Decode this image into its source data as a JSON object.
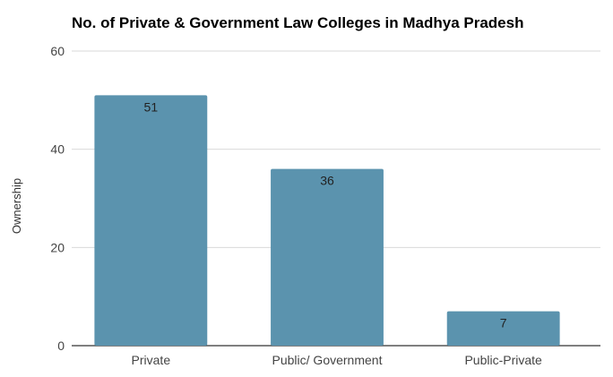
{
  "chart_data": {
    "type": "bar",
    "title": "No. of Private & Government Law Colleges in Madhya Pradesh",
    "xlabel": "",
    "ylabel": "Ownership",
    "categories": [
      "Private",
      "Public/ Government",
      "Public-Private"
    ],
    "values": [
      51,
      36,
      7
    ],
    "data_labels": [
      "51",
      "36",
      "7"
    ],
    "ylim": [
      0,
      60
    ],
    "yticks": [
      0,
      20,
      40,
      60
    ],
    "ytick_labels": [
      "0",
      "20",
      "40",
      "60"
    ],
    "grid": true,
    "legend": "none",
    "colors": {
      "bar": "#5b93ae",
      "grid": "#d9d9d9",
      "baseline": "#333333"
    }
  }
}
